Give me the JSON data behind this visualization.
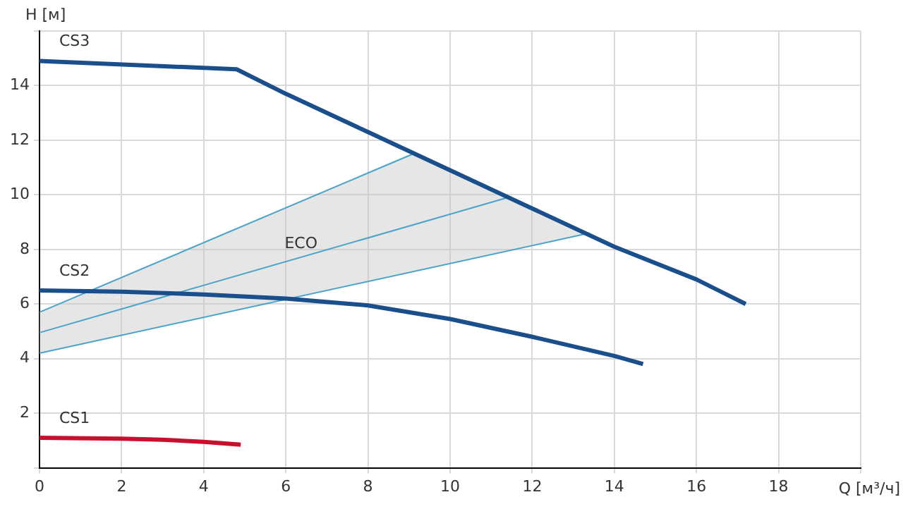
{
  "chart_data": {
    "type": "line",
    "xlabel": "Q [м³/ч]",
    "ylabel": "H [м]",
    "xlim": [
      0,
      20
    ],
    "xticks": [
      0,
      2,
      4,
      6,
      8,
      10,
      12,
      14,
      16,
      18,
      {
        "value": 20,
        "label": null
      }
    ],
    "ylim": [
      0,
      16
    ],
    "yticks": [
      {
        "value": 0,
        "label": null
      },
      2,
      4,
      6,
      8,
      10,
      12,
      14,
      {
        "value": 16,
        "label": null
      }
    ],
    "grid": true,
    "legend": false,
    "marker": "none",
    "line_style": "solid",
    "series": [
      {
        "name": "CS3",
        "color": "#1b4f8c",
        "x": [
          0,
          4.8,
          6,
          8,
          10,
          12,
          14,
          16,
          17.2
        ],
        "values": [
          14.9,
          14.6,
          13.7,
          12.3,
          10.9,
          9.5,
          8.1,
          6.9,
          6.0
        ]
      },
      {
        "name": "CS2",
        "color": "#1b4f8c",
        "x": [
          0,
          2,
          4,
          6,
          8,
          10,
          12,
          14,
          14.7
        ],
        "values": [
          6.5,
          6.45,
          6.35,
          6.2,
          5.95,
          5.45,
          4.8,
          4.1,
          3.8
        ]
      },
      {
        "name": "CS1",
        "color": "#c8102e",
        "x": [
          0,
          2,
          3,
          4,
          4.9
        ],
        "values": [
          1.1,
          1.07,
          1.03,
          0.95,
          0.85
        ]
      },
      {
        "name": "ECO",
        "color": "#4aa3c8",
        "x": [
          0,
          9.1,
          11.4,
          13.4
        ],
        "values": [
          4.95,
          8.9,
          9.9,
          null
        ],
        "lower": [
          4.2,
          7.19,
          7.94,
          8.6
        ],
        "upper": [
          5.7,
          11.5,
          9.9,
          8.6
        ]
      },
      {
        "color": "#4aa3c8",
        "x": [
          0,
          9.1
        ],
        "values": [
          5.7,
          11.5
        ]
      },
      {
        "color": "#4aa3c8",
        "x": [
          0,
          13.4
        ],
        "values": [
          4.2,
          8.6
        ]
      }
    ]
  }
}
